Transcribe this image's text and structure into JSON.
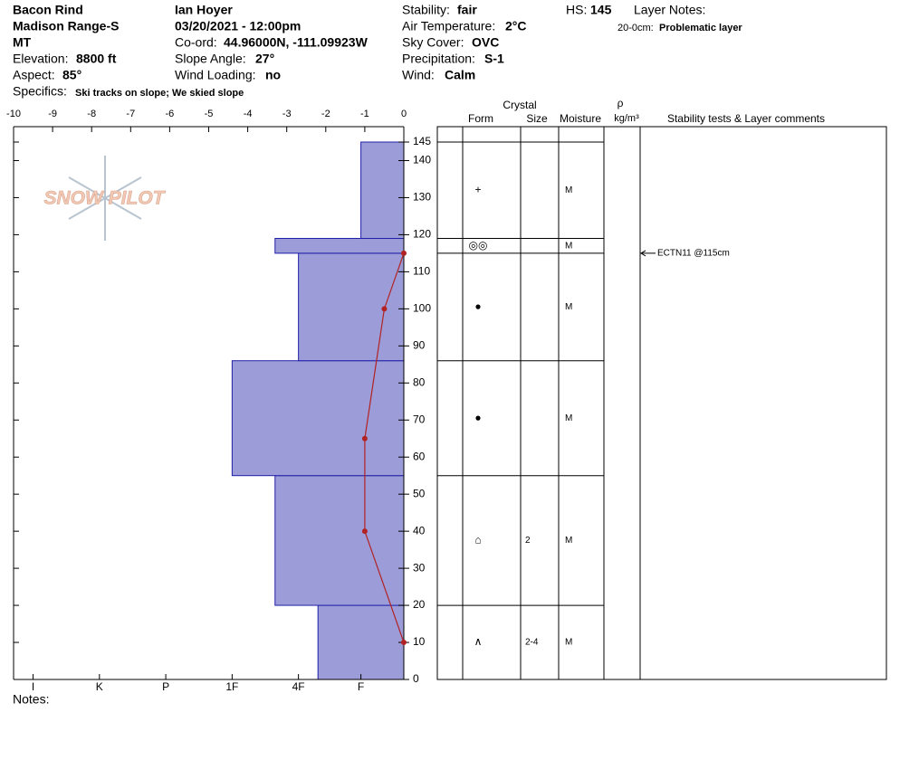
{
  "header": {
    "site": "Bacon Rind",
    "range": "Madison Range-S",
    "state": "MT",
    "elevation": {
      "label": "Elevation:",
      "value": "8800 ft"
    },
    "aspect": {
      "label": "Aspect:",
      "value": "85°"
    },
    "specifics": {
      "label": "Specifics:",
      "value": "Ski tracks on slope; We skied slope"
    },
    "observer": "Ian Hoyer",
    "date": "03/20/2021 - 12:00pm",
    "coord": {
      "label": "Co-ord:",
      "value": "44.96000N, -111.09923W"
    },
    "slope": {
      "label": "Slope Angle:",
      "value": "27°"
    },
    "wind_loading": {
      "label": "Wind Loading:",
      "value": "no"
    },
    "stability": {
      "label": "Stability:",
      "value": "fair"
    },
    "air_temp": {
      "label": "Air Temperature:",
      "value": "2°C"
    },
    "sky": {
      "label": "Sky Cover:",
      "value": "OVC"
    },
    "precip": {
      "label": "Precipitation:",
      "value": "S-1"
    },
    "wind": {
      "label": "Wind:",
      "value": "Calm"
    },
    "hs": {
      "label": "HS:",
      "value": "145"
    },
    "layer_notes": {
      "label": "Layer Notes:",
      "range": "20-0cm:",
      "text": "Problematic layer"
    },
    "logo": "SNOW PILOT",
    "notes": "Notes:"
  },
  "chart_data": {
    "type": "snow-profile",
    "ylim": [
      0,
      145
    ],
    "yticks": [
      0,
      10,
      20,
      30,
      40,
      50,
      60,
      70,
      80,
      90,
      100,
      110,
      120,
      130,
      140,
      145
    ],
    "temperature": {
      "xlim": [
        -10,
        0
      ],
      "xticks": [
        -10,
        -9,
        -8,
        -7,
        -6,
        -5,
        -4,
        -3,
        -2,
        -1,
        0
      ],
      "heights": [
        115,
        100,
        65,
        40,
        10
      ],
      "values": [
        0,
        -0.5,
        -1,
        -1,
        0
      ],
      "color": "#b22222"
    },
    "hardness": {
      "xlim": [
        0,
        10
      ],
      "xticks": [
        {
          "value": 9.5,
          "label": "I"
        },
        {
          "value": 7.8,
          "label": "K"
        },
        {
          "value": 6.1,
          "label": "P"
        },
        {
          "value": 4.4,
          "label": "1F"
        },
        {
          "value": 2.7,
          "label": "4F"
        },
        {
          "value": 1.1,
          "label": "F"
        }
      ],
      "bottom": [
        0,
        20,
        55,
        86,
        115,
        119
      ],
      "top": [
        20,
        55,
        86,
        115,
        119,
        145
      ],
      "values": [
        2.2,
        3.3,
        4.4,
        2.7,
        3.3,
        1.1
      ],
      "color": "#9c9cd8",
      "edge": "#1f1fa8"
    },
    "table": {
      "crystal": "Crystal",
      "form": "Form",
      "size": "Size",
      "moisture": "Moisture",
      "rho": "ρ",
      "density_unit": "kg/m³",
      "comments": "Stability tests & Layer comments",
      "layers": [
        {
          "form": "∧",
          "size": "2-4",
          "moisture": "M"
        },
        {
          "form": "⌂",
          "size": "2",
          "moisture": "M"
        },
        {
          "form": "●",
          "moisture": "M"
        },
        {
          "form": "●",
          "moisture": "M"
        },
        {
          "form": "◎◎",
          "moisture": "M"
        },
        {
          "form": "+",
          "moisture": "M"
        }
      ],
      "tests": [
        {
          "text": "ECTN11 @115cm",
          "height": 115
        }
      ]
    }
  }
}
